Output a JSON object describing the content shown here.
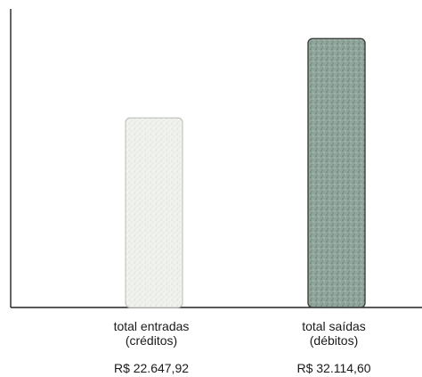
{
  "chart_data": {
    "type": "bar",
    "categories": [
      [
        "total entradas",
        "(créditos)"
      ],
      [
        "total saídas",
        "(débitos)"
      ]
    ],
    "values": [
      22647.92,
      32114.6
    ],
    "value_labels": [
      "R$ 22.647,92",
      "R$ 32.114,60"
    ],
    "bar_colors": [
      "#eef1ec",
      "#8fa39a"
    ],
    "bar_edge_colors": [
      "#b9bcb6",
      "#3d403c"
    ],
    "ylim": [
      0,
      34600
    ],
    "grid": false,
    "title": "",
    "xlabel": "",
    "ylabel": ""
  }
}
